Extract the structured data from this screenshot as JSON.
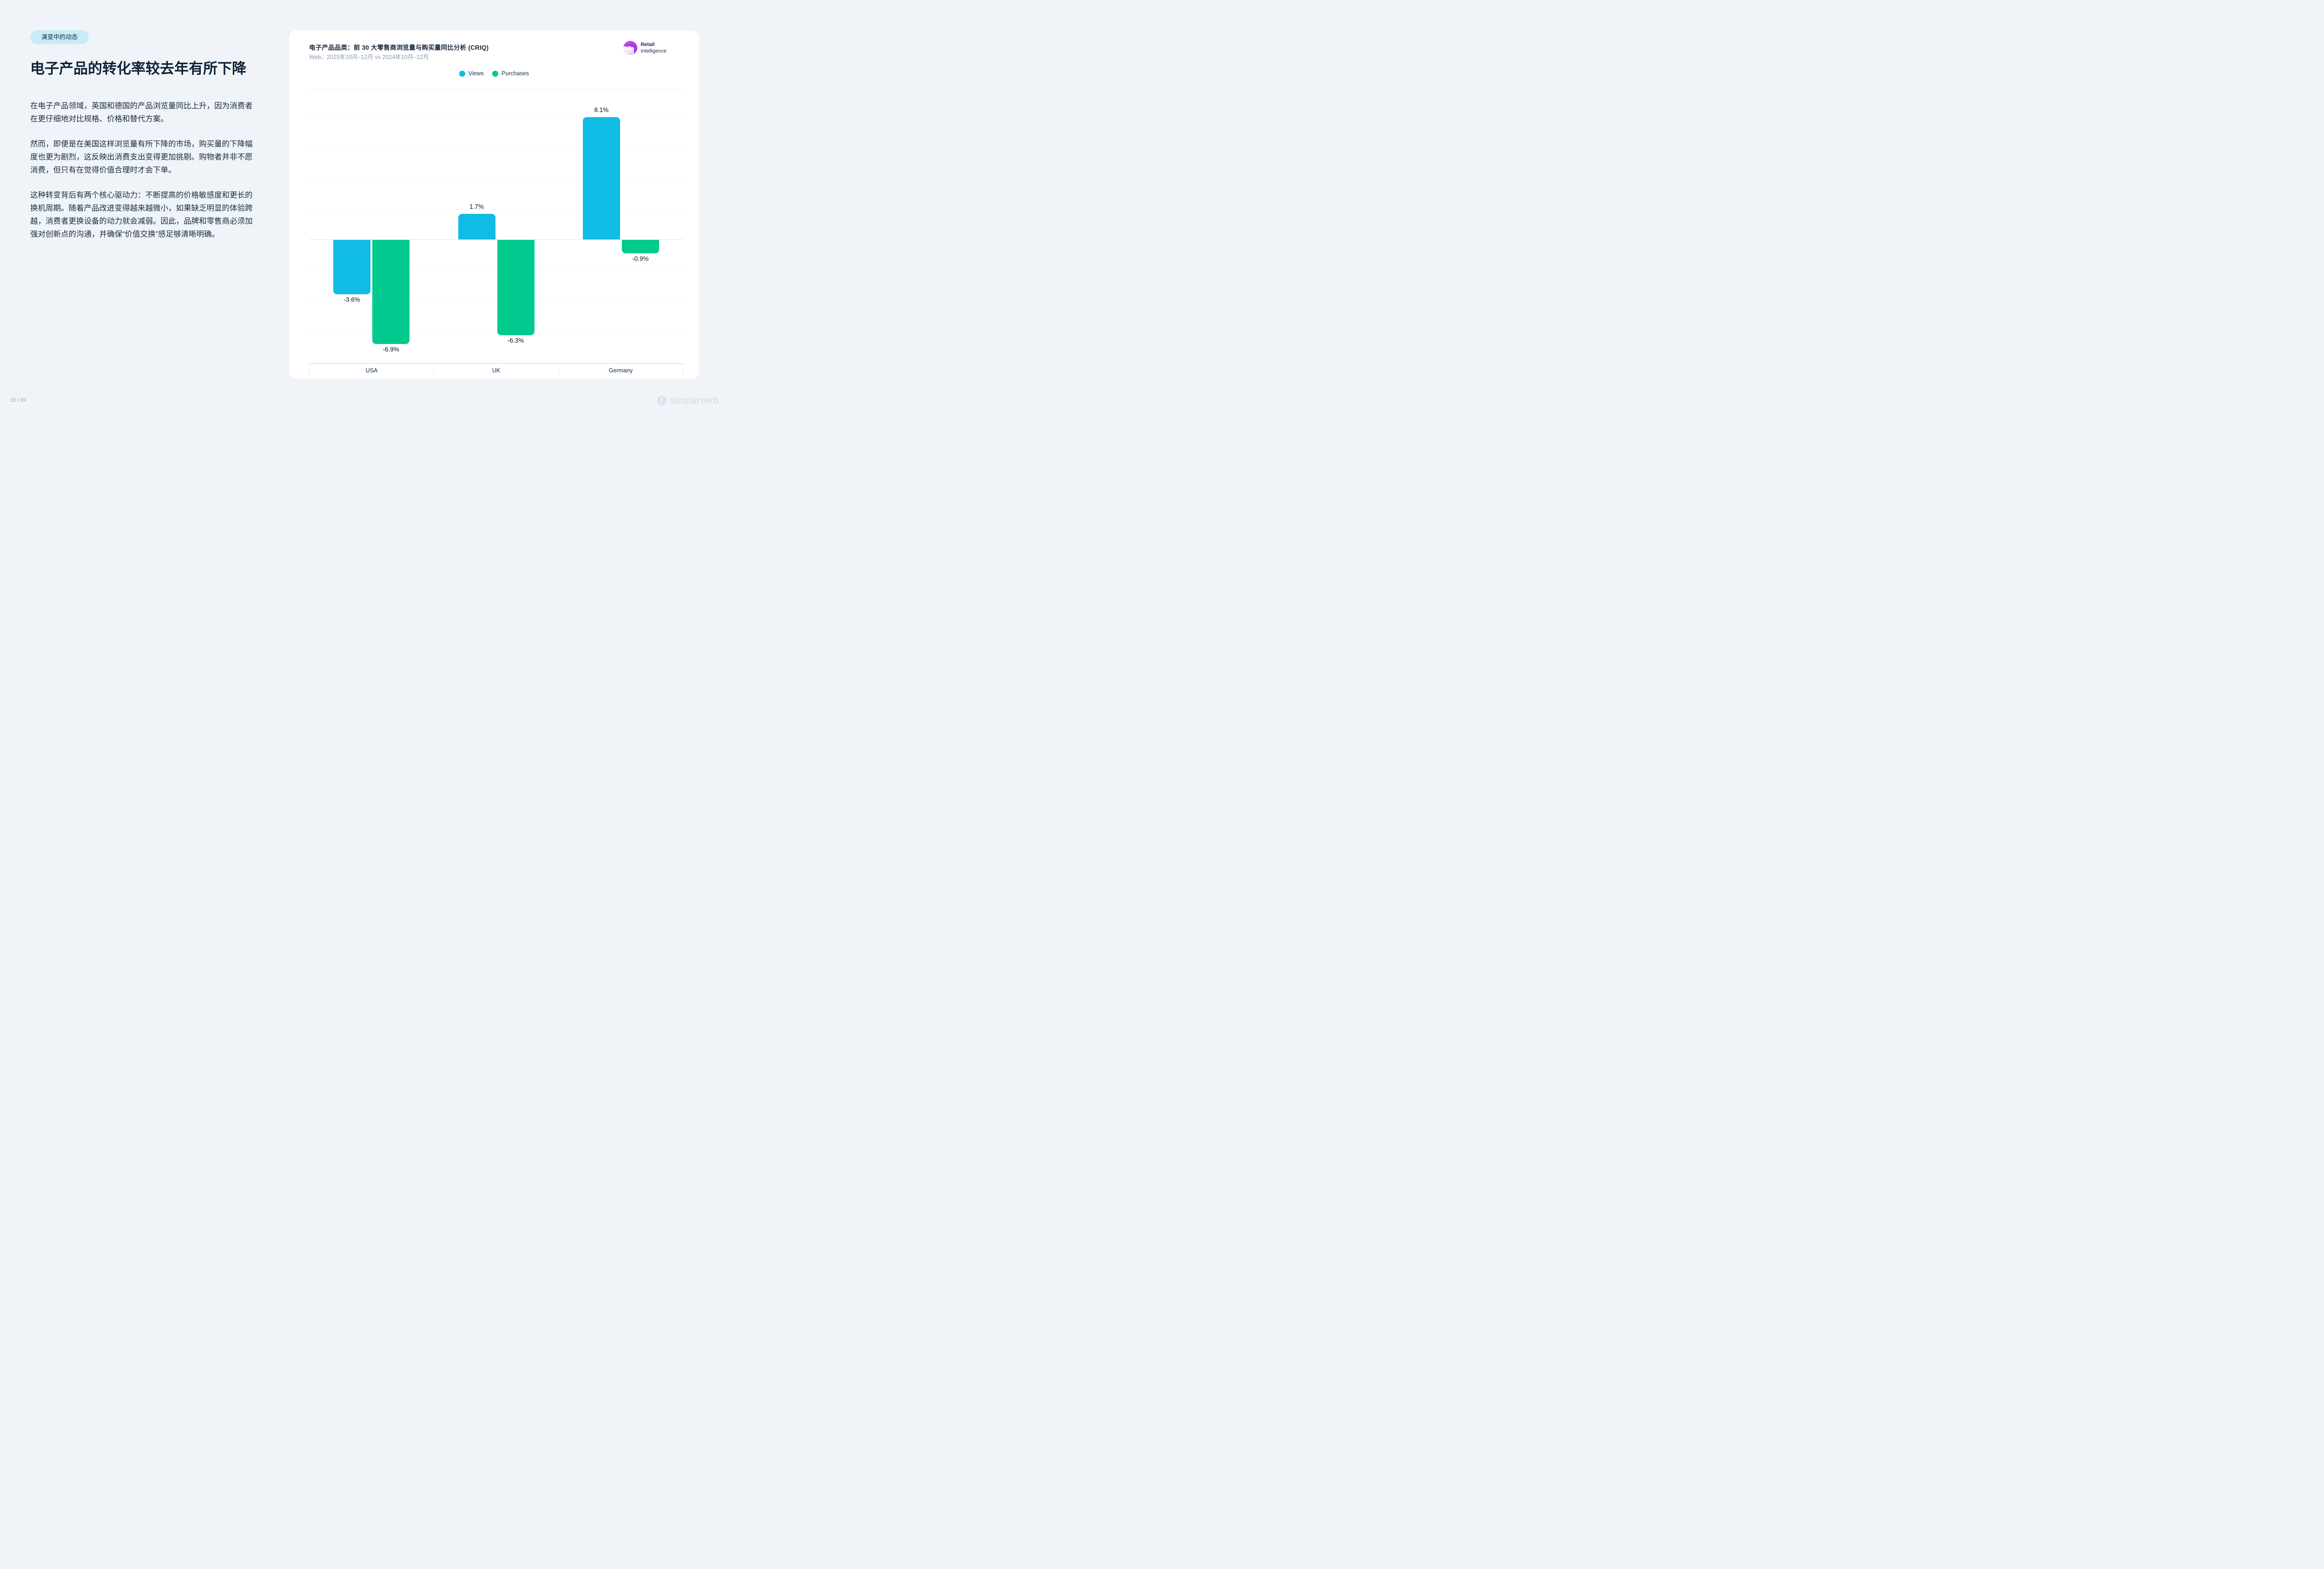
{
  "page": {
    "badge": "演变中的动态",
    "title": "电子产品的转化率较去年有所下降",
    "paragraphs": [
      "在电子产品领域，英国和德国的产品浏览量同比上升，因为消费者在更仔细地对比规格、价格和替代方案。",
      "然而，即便是在美国这样浏览量有所下降的市场，购买量的下降幅度也更为剧烈，这反映出消费支出变得更加挑剔。购物者并非不愿消费，但只有在觉得价值合理时才会下单。",
      "这种转变背后有两个核心驱动力：不断提高的价格敏感度和更长的换机周期。随着产品改进变得越来越微小，如果缺乏明显的体验跨越，消费者更换设备的动力就会减弱。因此，品牌和零售商必须加强对创新点的沟通，并确保“价值交换”感足够清晰明确。"
    ],
    "page_number": "15 / 29",
    "footer_brand": "similarweb"
  },
  "card": {
    "title_prefix": "电子产品品类：前 ",
    "title_bold_1": "30",
    "title_mid": " 大零售商浏览量与购买量同比分析 ",
    "title_bold_2": "(CRIQ)",
    "subtitle": "Web，2025年10月–12月 vs 2024年10月–12月",
    "logo": {
      "line1": "Retail",
      "line2": "Intelligence"
    }
  },
  "colors": {
    "views_cyan": "#10bbe5",
    "purchases_green": "#02c98e",
    "badge_bg": "#c8ebf6",
    "logo_purple": "#b03ded",
    "watermark_gray": "#dbe1eb",
    "text_dark": "#0d2133"
  },
  "chart_data": {
    "type": "bar",
    "title": "电子产品品类：前 30 大零售商浏览量与购买量同比分析 (CRIQ)",
    "subtitle": "Web，2025年10月–12月 vs 2024年10月–12月",
    "categories": [
      "USA",
      "UK",
      "Germany"
    ],
    "series": [
      {
        "name": "Views",
        "color": "#10bbe5",
        "values": [
          -3.6,
          1.7,
          8.1
        ]
      },
      {
        "name": "Purchases",
        "color": "#02c98e",
        "values": [
          -6.9,
          -6.3,
          -0.9
        ]
      }
    ],
    "value_suffix": "%",
    "ylim": [
      -8.2,
      10
    ],
    "grid_step": 2,
    "grid": true,
    "legend_position": "top-center",
    "xlabel": "",
    "ylabel": ""
  }
}
